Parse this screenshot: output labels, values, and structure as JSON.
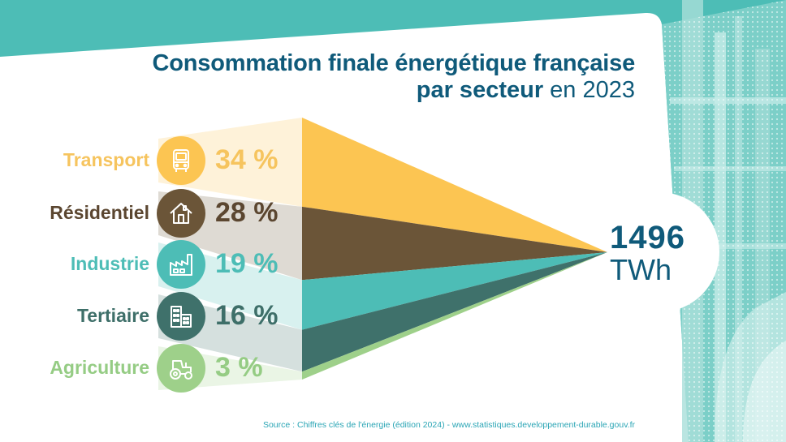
{
  "title": {
    "line1": "Consommation finale énergétique française",
    "line2_bold": "par secteur",
    "line2_light": "en 2023"
  },
  "total": {
    "value": "1496",
    "unit": "TWh"
  },
  "source": "Source : Chiffres clés de l'énergie (édition 2024) - www.statistiques.developpement-durable.gouv.fr",
  "colors": {
    "header_teal": "#4dbdb6",
    "title_blue": "#0f5a7a",
    "source_teal": "#2aa5b5"
  },
  "chart_data": {
    "type": "funnel-share",
    "title": "Consommation finale énergétique française par secteur en 2023",
    "total": 1496,
    "total_unit": "TWh",
    "categories": [
      "Transport",
      "Résidentiel",
      "Industrie",
      "Tertiaire",
      "Agriculture"
    ],
    "values": [
      34,
      28,
      19,
      16,
      3
    ],
    "value_labels": [
      "34 %",
      "28 %",
      "19 %",
      "16 %",
      "3 %"
    ],
    "unit": "%",
    "icons": [
      "bus-icon",
      "house-icon",
      "factory-icon",
      "office-building-icon",
      "tractor-icon"
    ],
    "colors": [
      "#fcc552",
      "#6b5538",
      "#4dbdb6",
      "#3f716b",
      "#9ed08a"
    ],
    "label_colors": [
      "#f6c45e",
      "#5b4630",
      "#4dbdb6",
      "#3e6f69",
      "#95cc84"
    ]
  }
}
